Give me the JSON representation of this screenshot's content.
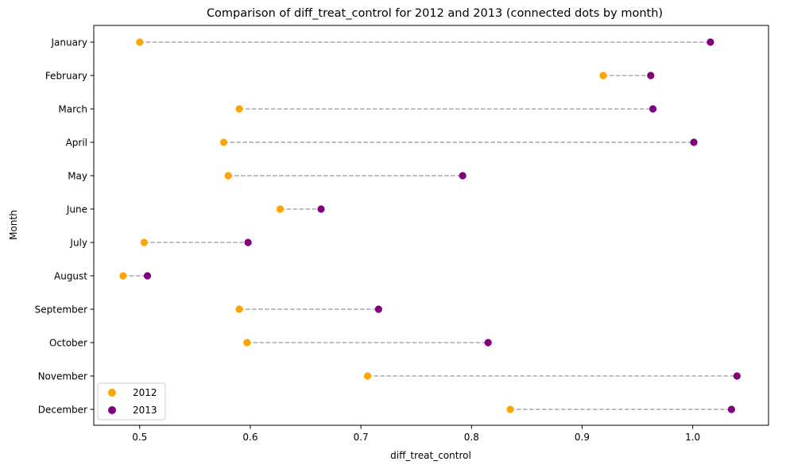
{
  "chart_data": {
    "type": "scatter",
    "title": "Comparison of diff_treat_control for 2012 and 2013 (connected dots by month)",
    "xlabel": "diff_treat_control",
    "ylabel": "Month",
    "xlim": [
      0.4585,
      1.0685
    ],
    "xticks": [
      "0.5",
      "0.6",
      "0.7",
      "0.8",
      "0.9",
      "1.0"
    ],
    "xtick_values": [
      0.5,
      0.6,
      0.7,
      0.8,
      0.9,
      1.0
    ],
    "categories": [
      "January",
      "February",
      "March",
      "April",
      "May",
      "June",
      "July",
      "August",
      "September",
      "October",
      "November",
      "December"
    ],
    "series": [
      {
        "name": "2012",
        "color": "#ffa500",
        "values": [
          0.5,
          0.919,
          0.59,
          0.576,
          0.58,
          0.627,
          0.504,
          0.485,
          0.59,
          0.597,
          0.706,
          0.835
        ]
      },
      {
        "name": "2013",
        "color": "#800080",
        "values": [
          1.016,
          0.962,
          0.964,
          1.001,
          0.792,
          0.664,
          0.598,
          0.507,
          0.716,
          0.815,
          1.04,
          1.035
        ]
      }
    ],
    "connector_color": "#aaaaaa",
    "connector_style": "dashed",
    "grid": false,
    "legend_position": "lower-left"
  }
}
